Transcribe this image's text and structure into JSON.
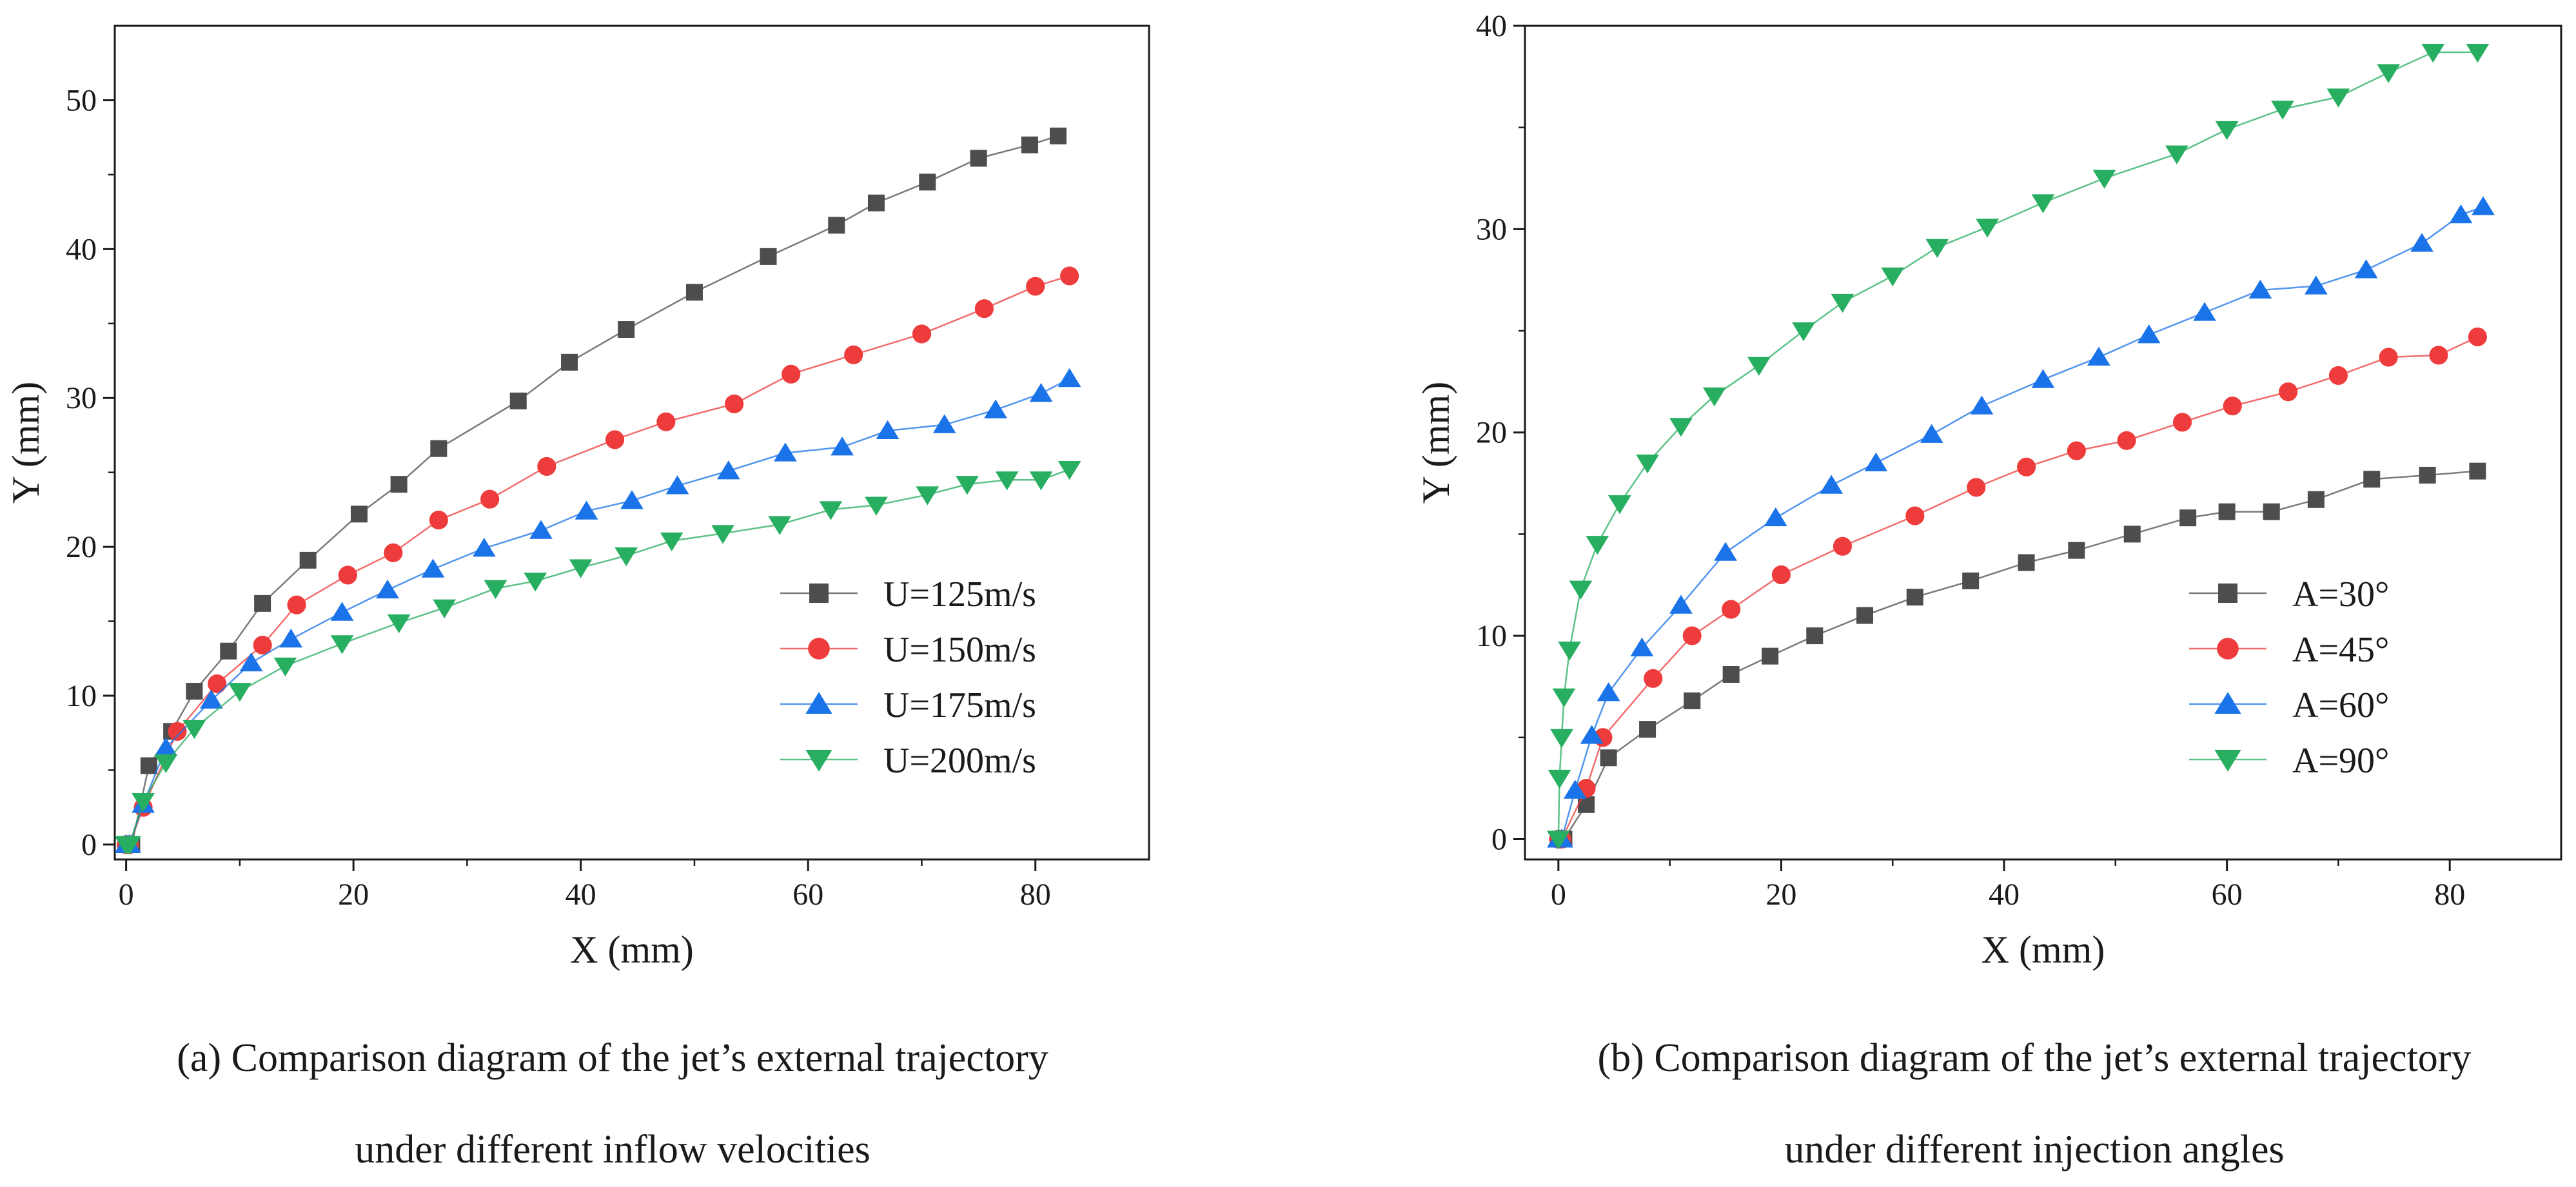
{
  "chart_data": [
    {
      "type": "line",
      "xlabel": "X (mm)",
      "ylabel": "Y (mm)",
      "xlim": [
        -1,
        90
      ],
      "ylim": [
        -1,
        55
      ],
      "xticks": [
        0,
        20,
        40,
        60,
        80
      ],
      "yticks": [
        0,
        10,
        20,
        30,
        40,
        50
      ],
      "legend_position": "lower-right",
      "grid": false,
      "caption": [
        "(a) Comparison diagram of the jet’s external trajectory",
        "under different inflow velocities"
      ],
      "series": [
        {
          "name": "U=125m/s",
          "marker": "square",
          "color": "#4d4d4d",
          "x": [
            0,
            0.5,
            2,
            4,
            6,
            9,
            12,
            16,
            20.5,
            24,
            27.5,
            34.5,
            39,
            44,
            50,
            56.5,
            62.5,
            66,
            70.5,
            75,
            79.5,
            82
          ],
          "y": [
            0,
            0,
            5.3,
            7.6,
            10.3,
            13,
            16.2,
            19.1,
            22.2,
            24.2,
            26.6,
            29.8,
            32.4,
            34.6,
            37.1,
            39.5,
            41.6,
            43.1,
            44.5,
            46.1,
            47,
            47.6
          ]
        },
        {
          "name": "U=150m/s",
          "marker": "circle",
          "color": "#ee3b3b",
          "x": [
            0,
            0.3,
            1.5,
            4.5,
            8,
            12,
            15,
            19.5,
            23.5,
            27.5,
            32,
            37,
            43,
            47.5,
            53.5,
            58.5,
            64,
            70,
            75.5,
            80,
            83
          ],
          "y": [
            0,
            0,
            2.5,
            7.6,
            10.8,
            13.4,
            16.1,
            18.1,
            19.6,
            21.8,
            23.2,
            25.4,
            27.2,
            28.4,
            29.6,
            31.6,
            32.9,
            34.3,
            36,
            37.5,
            38.2
          ]
        },
        {
          "name": "U=175m/s",
          "marker": "triangle-up",
          "color": "#1a73e8",
          "x": [
            0,
            0.3,
            1.5,
            3.5,
            7.5,
            11,
            14.5,
            19,
            23,
            27,
            31.5,
            36.5,
            40.5,
            44.5,
            48.5,
            53,
            58,
            63,
            67,
            72,
            76.5,
            80.5,
            83
          ],
          "y": [
            0,
            0,
            2.7,
            6.5,
            9.7,
            12.2,
            13.8,
            15.6,
            17.1,
            18.5,
            19.9,
            21.1,
            22.4,
            23.1,
            24.1,
            25.1,
            26.3,
            26.7,
            27.8,
            28.2,
            29.2,
            30.3,
            31.3
          ]
        },
        {
          "name": "U=200m/s",
          "marker": "triangle-down",
          "color": "#27ae60",
          "x": [
            0,
            0.3,
            1.5,
            3.5,
            6,
            10,
            14,
            19,
            24,
            28,
            32.5,
            36,
            40,
            44,
            48,
            52.5,
            57.5,
            62,
            66,
            70.5,
            74,
            77.5,
            80.5,
            83
          ],
          "y": [
            0,
            0,
            2.9,
            5.5,
            7.8,
            10.3,
            12,
            13.5,
            14.9,
            15.9,
            17.2,
            17.7,
            18.6,
            19.4,
            20.4,
            20.9,
            21.5,
            22.5,
            22.8,
            23.5,
            24.2,
            24.5,
            24.5,
            25.2
          ]
        }
      ]
    },
    {
      "type": "line",
      "xlabel": "X (mm)",
      "ylabel": "Y (mm)",
      "xlim": [
        -3,
        90
      ],
      "ylim": [
        -1,
        40
      ],
      "xticks": [
        0,
        20,
        40,
        60,
        80
      ],
      "yticks": [
        0,
        10,
        20,
        30,
        40
      ],
      "legend_position": "lower-right",
      "grid": false,
      "caption": [
        "(b) Comparison diagram of the jet’s external trajectory",
        "under different injection angles"
      ],
      "series": [
        {
          "name": "A=30°",
          "marker": "square",
          "color": "#4d4d4d",
          "x": [
            0,
            0.5,
            2.5,
            4.5,
            8,
            12,
            15.5,
            19,
            23,
            27.5,
            32,
            37,
            42,
            46.5,
            51.5,
            56.5,
            60,
            64,
            68,
            73,
            78,
            82.5
          ],
          "y": [
            0,
            0,
            1.7,
            4,
            5.4,
            6.8,
            8.1,
            9,
            10,
            11,
            11.9,
            12.7,
            13.6,
            14.2,
            15,
            15.8,
            16.1,
            16.1,
            16.7,
            17.7,
            17.9,
            18.1
          ]
        },
        {
          "name": "A=45°",
          "marker": "circle",
          "color": "#ee3b3b",
          "x": [
            0,
            0.3,
            2.5,
            4,
            8.5,
            12,
            15.5,
            20,
            25.5,
            32,
            37.5,
            42,
            46.5,
            51,
            56,
            60.5,
            65.5,
            70,
            74.5,
            79,
            82.5
          ],
          "y": [
            0,
            0,
            2.5,
            5,
            7.9,
            10,
            11.3,
            13,
            14.4,
            15.9,
            17.3,
            18.3,
            19.1,
            19.6,
            20.5,
            21.3,
            22,
            22.8,
            23.7,
            23.8,
            24.7
          ]
        },
        {
          "name": "A=60°",
          "marker": "triangle-up",
          "color": "#1a73e8",
          "x": [
            0,
            0.3,
            1.5,
            3,
            4.5,
            7.5,
            11,
            15,
            19.5,
            24.5,
            28.5,
            33.5,
            38,
            43.5,
            48.5,
            53,
            58,
            63,
            68,
            72.5,
            77.5,
            81,
            83
          ],
          "y": [
            0,
            0,
            2.4,
            5.1,
            7.2,
            9.4,
            11.5,
            14.1,
            15.8,
            17.4,
            18.5,
            19.9,
            21.3,
            22.6,
            23.7,
            24.8,
            25.9,
            27,
            27.2,
            28,
            29.3,
            30.7,
            31.1
          ]
        },
        {
          "name": "A=90°",
          "marker": "triangle-down",
          "color": "#27ae60",
          "x": [
            0,
            0.1,
            0.3,
            0.5,
            1,
            2,
            3.5,
            5.5,
            8,
            11,
            14,
            18,
            22,
            25.5,
            30,
            34,
            38.5,
            43.5,
            49,
            55.5,
            60,
            65,
            70,
            74.5,
            78.5,
            82.5
          ],
          "y": [
            0,
            3,
            5,
            7,
            9.3,
            12.3,
            14.5,
            16.5,
            18.5,
            20.3,
            21.8,
            23.3,
            25,
            26.4,
            27.7,
            29.1,
            30.1,
            31.3,
            32.5,
            33.7,
            34.9,
            35.9,
            36.5,
            37.7,
            38.7,
            38.7
          ]
        }
      ]
    }
  ]
}
